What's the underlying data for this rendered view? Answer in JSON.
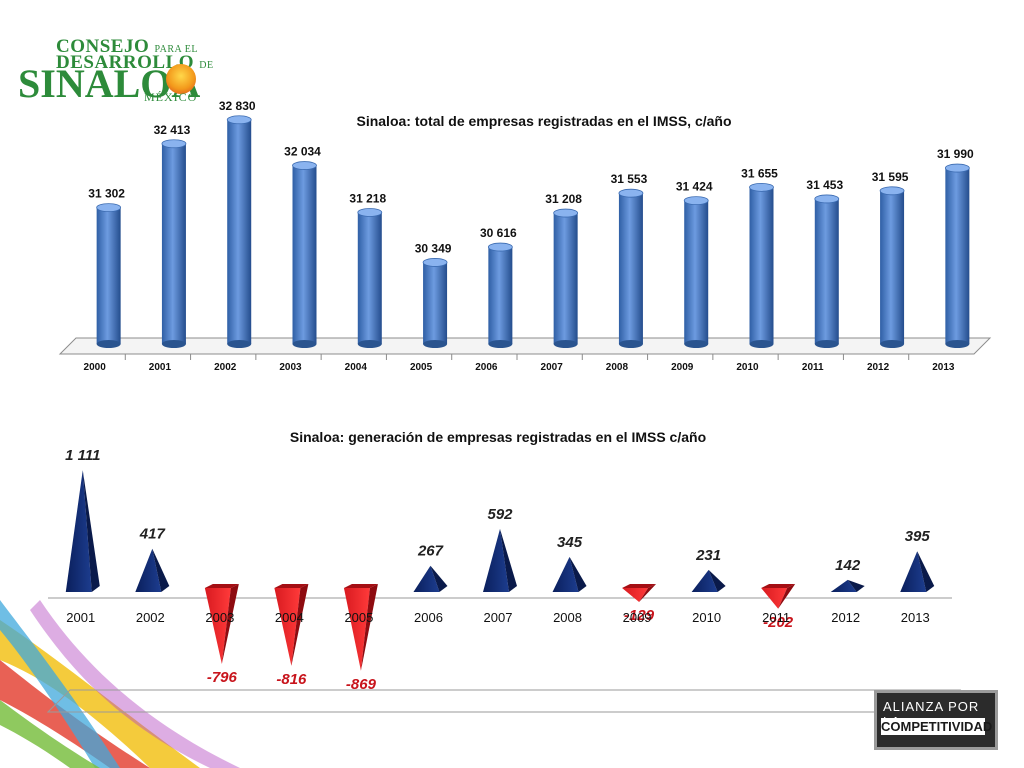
{
  "logos": {
    "csd_line1": "CONSEJO",
    "csd_line1_small": "PARA EL",
    "csd_line2": "DESARROLLO",
    "csd_line2_small": "DE",
    "csd_line3": "SINALOA",
    "csd_line4": "MÉXICO",
    "alianza_line1": "ALIANZA POR LA",
    "alianza_line2": "COMPETITIVIDAD"
  },
  "colors": {
    "bar_blue": "#4a7cc4",
    "bar_dark_blue": "#10286a",
    "bar_red": "#c8141c",
    "negative_label": "#c8141c"
  },
  "chart_data": [
    {
      "type": "bar",
      "title": "Sinaloa: total de empresas registradas en el IMSS, c/año",
      "categories": [
        "2000",
        "2001",
        "2002",
        "2003",
        "2004",
        "2005",
        "2006",
        "2007",
        "2008",
        "2009",
        "2010",
        "2011",
        "2012",
        "2013"
      ],
      "values": [
        31302,
        32413,
        32830,
        32034,
        31218,
        30349,
        30616,
        31208,
        31553,
        31424,
        31655,
        31453,
        31595,
        31990
      ],
      "labels": [
        "31 302",
        "32 413",
        "32 830",
        "32 034",
        "31 218",
        "30 349",
        "30 616",
        "31 208",
        "31 553",
        "31 424",
        "31 655",
        "31 453",
        "31 595",
        "31 990"
      ],
      "ylim": [
        29000,
        33000
      ],
      "grid": false,
      "legend": "none"
    },
    {
      "type": "bar",
      "title": "Sinaloa: generación de empresas registradas en el IMSS c/año",
      "categories": [
        "2001",
        "2002",
        "2003",
        "2004",
        "2005",
        "2006",
        "2007",
        "2008",
        "2009",
        "2010",
        "2011",
        "2012",
        "2013"
      ],
      "values": [
        1111,
        417,
        -796,
        -816,
        -869,
        267,
        592,
        345,
        -129,
        231,
        -202,
        142,
        395
      ],
      "labels": [
        "1 111",
        "417",
        "-796",
        "-816",
        "-869",
        "267",
        "592",
        "345",
        "-129",
        "231",
        "-202",
        "142",
        "395"
      ],
      "ylim": [
        -900,
        1200
      ],
      "grid": false,
      "legend": "none"
    }
  ]
}
